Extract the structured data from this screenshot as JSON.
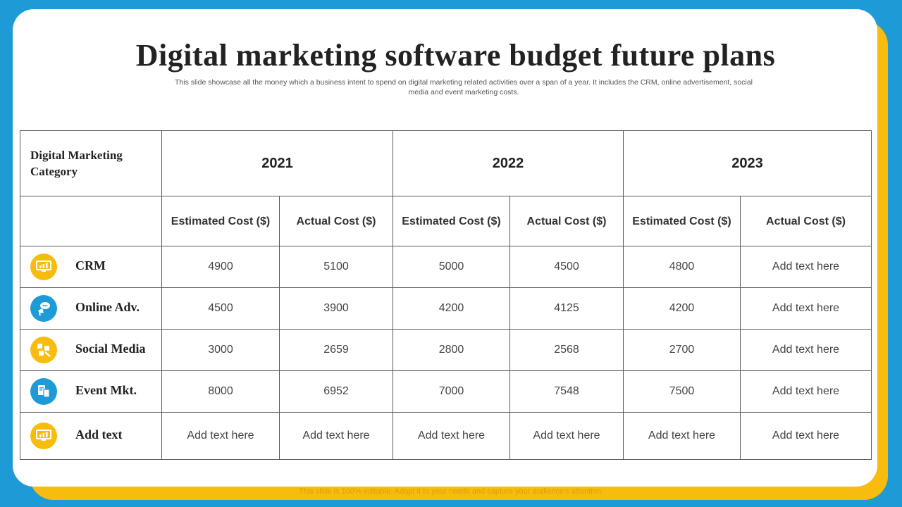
{
  "title": "Digital marketing software budget future plans",
  "subtitle": "This slide showcase all the money which a business intent to spend on digital marketing related activities over a span of a year.  It includes the CRM, online advertisement, social media and event marketing costs.",
  "table": {
    "category_header": "Digital Marketing Category",
    "years": [
      "2021",
      "2022",
      "2023"
    ],
    "sub_headers": {
      "estimated": "Estimated Cost ($)",
      "actual": "Actual Cost ($)"
    },
    "rows": [
      {
        "label": "CRM",
        "icon": "monitor-chart-icon",
        "icon_color": "#f7bc0d",
        "cells": [
          "4900",
          "5100",
          "5000",
          "4500",
          "4800",
          "Add text here"
        ]
      },
      {
        "label": "Online Adv.",
        "icon": "megaphone-chat-icon",
        "icon_color": "#1e9bd7",
        "cells": [
          "4500",
          "3900",
          "4200",
          "4125",
          "4200",
          "Add text here"
        ]
      },
      {
        "label": "Social Media",
        "icon": "share-network-icon",
        "icon_color": "#f7bc0d",
        "cells": [
          "3000",
          "2659",
          "2800",
          "2568",
          "2700",
          "Add text here"
        ]
      },
      {
        "label": "Event Mkt.",
        "icon": "event-devices-icon",
        "icon_color": "#1e9bd7",
        "cells": [
          "8000",
          "6952",
          "7000",
          "7548",
          "7500",
          "Add text here"
        ]
      },
      {
        "label": "Add text",
        "icon": "monitor-chart-icon",
        "icon_color": "#f7bc0d",
        "cells": [
          "Add text here",
          "Add text here",
          "Add text here",
          "Add text here",
          "Add text here",
          "Add text here"
        ]
      }
    ]
  },
  "footer": "This slide is 100% editable. Adapt it to your needs and capture your audience's attention.",
  "colors": {
    "background_blue": "#1e9bd7",
    "accent_yellow": "#f7bc0d"
  }
}
